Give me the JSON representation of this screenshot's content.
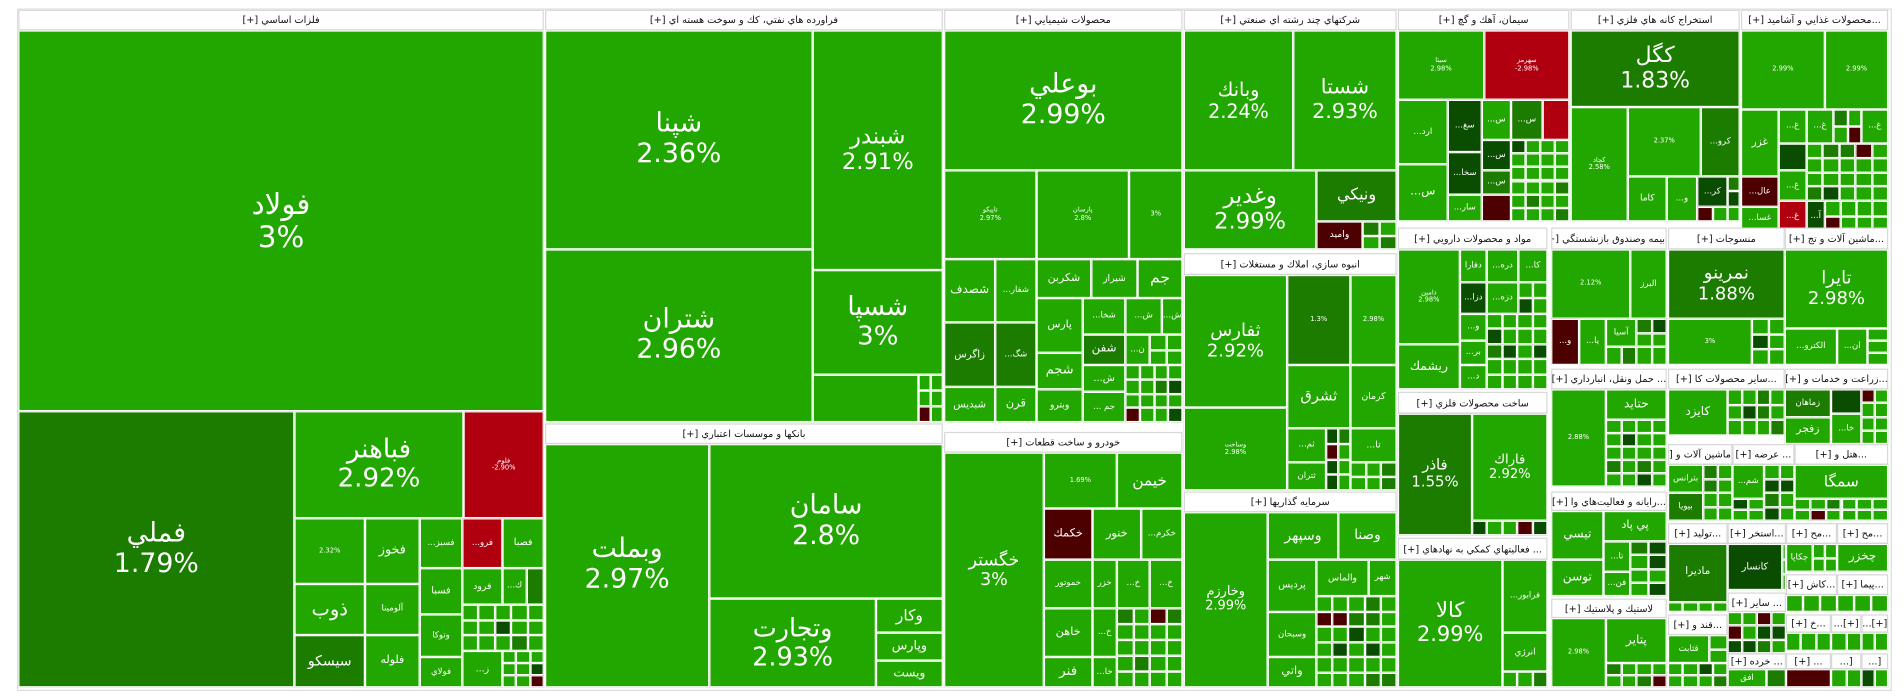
{
  "colors": {
    "g": "#22a700",
    "dg": "#1b7c00",
    "vdg": "#0b4d00",
    "r": "#b0000f",
    "dr": "#4c0000"
  },
  "sectors": [
    {
      "title": "فلزات اساسي [+]",
      "tiles": [
        {
          "s": "فولاد",
          "c": "3%",
          "k": "g"
        },
        {
          "s": "فملي",
          "c": "1.79%",
          "k": "dg"
        },
        {
          "s": "فباهنر",
          "c": "2.92%",
          "k": "g"
        },
        {
          "s": "فلوم",
          "c": "-2.90%",
          "k": "r"
        },
        {
          "s": "",
          "c": "2.32%",
          "k": "g"
        },
        {
          "s": "فخوز",
          "k": "g"
        },
        {
          "s": "...فسبز",
          "k": "g"
        },
        {
          "s": "...فرو",
          "k": "r"
        },
        {
          "s": "فصبا",
          "k": "g"
        },
        {
          "s": "ذوب",
          "k": "g"
        },
        {
          "s": "آلومينا",
          "k": "g"
        },
        {
          "s": "فسبا",
          "k": "g"
        },
        {
          "s": "فرود",
          "k": "g"
        },
        {
          "s": "...ك",
          "k": "g"
        },
        {
          "s": "",
          "k": "dg"
        },
        {
          "s": "سيسكو",
          "k": "dg"
        },
        {
          "s": "فلوله",
          "k": "g"
        },
        {
          "s": "وتوكا",
          "k": "g"
        },
        {
          "s": "فولاي",
          "k": "g"
        },
        {
          "s": "...ز",
          "k": "g"
        }
      ]
    },
    {
      "title": "فراورده هاي نفتي، كك و سوخت هسته اي [+]",
      "tiles": [
        {
          "s": "شپنا",
          "c": "2.36%",
          "k": "g"
        },
        {
          "s": "شتران",
          "c": "2.96%",
          "k": "g"
        },
        {
          "s": "شبندر",
          "c": "2.91%",
          "k": "g"
        },
        {
          "s": "شسپا",
          "c": "3%",
          "k": "g"
        },
        {
          "s": "",
          "k": "g"
        }
      ]
    },
    {
      "title": "بانكها و موسسات اعتباري [+]",
      "tiles": [
        {
          "s": "وبملت",
          "c": "2.97%",
          "k": "g"
        },
        {
          "s": "سامان",
          "c": "2.8%",
          "k": "g"
        },
        {
          "s": "وتجارت",
          "c": "2.93%",
          "k": "g"
        },
        {
          "s": "وكار",
          "k": "g"
        },
        {
          "s": "وپارس",
          "k": "g"
        },
        {
          "s": "ويست",
          "k": "g"
        }
      ]
    },
    {
      "title": "محصولات شيميايي [+]",
      "tiles": [
        {
          "s": "بوعلي",
          "c": "2.99%",
          "k": "g"
        },
        {
          "s": "تاپيكو",
          "c": "2.97%",
          "k": "g"
        },
        {
          "s": "پارسان",
          "c": "2.8%",
          "k": "g"
        },
        {
          "s": "",
          "c": "3%",
          "k": "g"
        },
        {
          "s": "شصدف",
          "k": "g"
        },
        {
          "s": "...شفار",
          "k": "g"
        },
        {
          "s": "شكربن",
          "k": "g"
        },
        {
          "s": "شيراز",
          "k": "g"
        },
        {
          "s": "جم",
          "k": "g"
        },
        {
          "s": "زاگرس",
          "k": "dg"
        },
        {
          "s": "...شگ",
          "k": "dg"
        },
        {
          "s": "شبديس",
          "k": "g"
        },
        {
          "s": "قرن",
          "k": "g"
        },
        {
          "s": "پارس",
          "k": "g"
        },
        {
          "s": "شجم",
          "k": "g"
        },
        {
          "s": "وبترو",
          "k": "g"
        },
        {
          "s": "...شخا",
          "k": "g"
        },
        {
          "s": "...ش",
          "k": "g"
        },
        {
          "s": "...ش",
          "k": "g"
        },
        {
          "s": "شفن",
          "k": "dg"
        },
        {
          "s": "...ن",
          "k": "g"
        },
        {
          "s": "...ش",
          "k": "g"
        },
        {
          "s": "... جم",
          "k": "g"
        }
      ]
    },
    {
      "title": "خودرو و ساخت قطعات [+]",
      "tiles": [
        {
          "s": "خگستر",
          "c": "3%",
          "k": "g"
        },
        {
          "s": "",
          "c": "1.69%",
          "k": "g"
        },
        {
          "s": "خيمن",
          "k": "g"
        },
        {
          "s": "خكمك",
          "k": "dr"
        },
        {
          "s": "خنور",
          "k": "g"
        },
        {
          "s": "...خكرم",
          "k": "g"
        },
        {
          "s": "خموتور",
          "k": "g"
        },
        {
          "s": "خزر",
          "k": "g"
        },
        {
          "s": "...خ",
          "k": "g"
        },
        {
          "s": "...خ",
          "k": "g"
        },
        {
          "s": "خاهن",
          "k": "g"
        },
        {
          "s": "فنر",
          "k": "g"
        },
        {
          "s": "...خ",
          "k": "g"
        },
        {
          "s": "...خا",
          "k": "g"
        }
      ]
    },
    {
      "title": "شركتهاي چند رشته اي صنعتي [+]",
      "tiles": [
        {
          "s": "وبانك",
          "c": "2.24%",
          "k": "g"
        },
        {
          "s": "شستا",
          "c": "2.93%",
          "k": "g"
        },
        {
          "s": "وغدير",
          "c": "2.99%",
          "k": "g"
        },
        {
          "s": "ونيكي",
          "k": "dg"
        },
        {
          "s": "واميد",
          "k": "dr"
        }
      ]
    },
    {
      "title": "انبوه سازي، املاك و مستغلات [+]",
      "tiles": [
        {
          "s": "ثفارس",
          "c": "2.92%",
          "k": "g"
        },
        {
          "s": "",
          "c": "1.3%",
          "k": "dg"
        },
        {
          "s": "",
          "c": "2.98%",
          "k": "g"
        },
        {
          "s": "ثشرق",
          "k": "g"
        },
        {
          "s": "كرمان",
          "k": "g"
        },
        {
          "s": "وساخت",
          "c": "2.98%",
          "k": "g"
        },
        {
          "s": "...ثم",
          "k": "g"
        },
        {
          "s": "...تا",
          "k": "g"
        },
        {
          "s": "ثتران",
          "k": "g"
        }
      ]
    },
    {
      "title": "سرمايه گذاريها [+]",
      "tiles": [
        {
          "s": "وخارزم",
          "c": "2.99%",
          "k": "g"
        },
        {
          "s": "وسپهر",
          "k": "g"
        },
        {
          "s": "وصنا",
          "k": "g"
        },
        {
          "s": "پرديس",
          "k": "g"
        },
        {
          "s": "والماس",
          "k": "g"
        },
        {
          "s": "شهر",
          "k": "g"
        },
        {
          "s": "وسبحان",
          "k": "g"
        },
        {
          "s": "واتي",
          "k": "g"
        }
      ]
    },
    {
      "title": "سيمان، آهك و گچ [+]",
      "tiles": [
        {
          "s": "سيتا",
          "c": "2.98%",
          "k": "g"
        },
        {
          "s": "سهرمز",
          "c": "-2.98%",
          "k": "r"
        },
        {
          "s": "...ارد",
          "k": "g"
        },
        {
          "s": "...س",
          "k": "g"
        },
        {
          "s": "...سغ",
          "k": "vdg"
        },
        {
          "s": "...سخا",
          "k": "vdg"
        },
        {
          "s": "...سار",
          "k": "g"
        },
        {
          "s": "...س",
          "k": "g"
        },
        {
          "s": "...س",
          "k": "dg"
        },
        {
          "s": "",
          "k": "r"
        },
        {
          "s": "...س",
          "k": "vdg"
        },
        {
          "s": "...س",
          "k": "dg"
        },
        {
          "s": "",
          "k": "dr"
        }
      ]
    },
    {
      "title": "مواد و محصولات دارويي [+]",
      "tiles": [
        {
          "s": "دامين",
          "c": "2.98%",
          "k": "g"
        },
        {
          "s": "ريشمك",
          "k": "g"
        },
        {
          "s": "دفارا",
          "k": "g"
        },
        {
          "s": "...دره",
          "k": "g"
        },
        {
          "s": "...كا",
          "k": "g"
        },
        {
          "s": "...دزا",
          "k": "vdg"
        },
        {
          "s": "...دزه",
          "k": "g"
        },
        {
          "s": "...و",
          "k": "g"
        },
        {
          "s": "...بر",
          "k": "g"
        },
        {
          "s": "...د",
          "k": "g"
        }
      ]
    },
    {
      "title": "ساخت محصولات فلزي [+]",
      "tiles": [
        {
          "s": "فاذر",
          "c": "1.55%",
          "k": "dg"
        },
        {
          "s": "فاراك",
          "c": "2.92%",
          "k": "g"
        }
      ]
    },
    {
      "title": "... فعاليتهاي كمكي به نهادهاي [+]",
      "tiles": [
        {
          "s": "كالا",
          "c": "2.99%",
          "k": "g"
        },
        {
          "s": "...فرابور",
          "k": "g"
        },
        {
          "s": "انرژي",
          "k": "g"
        }
      ]
    },
    {
      "title": "استخراج كانه هاي فلزي [+]",
      "tiles": [
        {
          "s": "كگل",
          "c": "1.83%",
          "k": "dg"
        },
        {
          "s": "كچاد",
          "c": "2.58%",
          "k": "g"
        },
        {
          "s": "",
          "c": "2.37%",
          "k": "g"
        },
        {
          "s": "...كرو",
          "k": "dg"
        },
        {
          "s": "كاما",
          "k": "g"
        },
        {
          "s": "...و",
          "k": "g"
        },
        {
          "s": "...كر",
          "k": "vdg"
        }
      ]
    },
    {
      "title": "...محصولات غذايي و آشاميد [+]",
      "tiles": [
        {
          "s": "",
          "c": "2.99%",
          "k": "g"
        },
        {
          "s": "",
          "c": "2.99%",
          "k": "g"
        },
        {
          "s": "غزر",
          "k": "g"
        },
        {
          "s": "...غ",
          "k": "g"
        },
        {
          "s": "...غ",
          "k": "g"
        },
        {
          "s": "...غ",
          "k": "g"
        },
        {
          "s": "",
          "k": "vdg"
        },
        {
          "s": "...عال",
          "k": "dr"
        },
        {
          "s": "...غسا",
          "k": "g"
        },
        {
          "s": "...غ",
          "k": "g"
        },
        {
          "s": "...غ",
          "k": "r"
        },
        {
          "s": "...آ",
          "k": "vdg"
        }
      ]
    },
    {
      "title": "...بيمه وصندوق بازنشستگي [+]",
      "tiles": [
        {
          "s": "",
          "c": "2.12%",
          "k": "g"
        },
        {
          "s": "البرز",
          "k": "g"
        },
        {
          "s": "...و",
          "k": "dr"
        },
        {
          "s": "...يا",
          "k": "g"
        },
        {
          "s": "آسيا",
          "k": "g"
        }
      ]
    },
    {
      "title": "منسوجات [+]",
      "tiles": [
        {
          "s": "نمرينو",
          "c": "1.88%",
          "k": "dg"
        },
        {
          "s": "",
          "c": "3%",
          "k": "g"
        }
      ]
    },
    {
      "title": "...ماشين آلات و تج [+]",
      "tiles": [
        {
          "s": "تايرا",
          "c": "2.98%",
          "k": "g"
        },
        {
          "s": "...الكترو",
          "k": "g"
        },
        {
          "s": "...ان",
          "k": "g"
        }
      ]
    },
    {
      "title": "... حمل ونقل، انبارداري [+]",
      "tiles": [
        {
          "s": "",
          "c": "2.88%",
          "k": "g"
        },
        {
          "s": "حتايد",
          "k": "g"
        }
      ]
    },
    {
      "title": "...رايانه و فعاليت‌هاي وا [+]",
      "tiles": [
        {
          "s": "تيسي",
          "k": "g"
        },
        {
          "s": "پي پاد",
          "k": "g"
        },
        {
          "s": "...تا",
          "k": "g"
        },
        {
          "s": "توسن",
          "k": "g"
        },
        {
          "s": "...فن",
          "k": "g"
        }
      ]
    },
    {
      "title": "لاستيك و پلاستيك [+]",
      "tiles": [
        {
          "s": "",
          "c": "2.98%",
          "k": "g"
        },
        {
          "s": "پتاير",
          "k": "g"
        }
      ]
    },
    {
      "title": "...ساير محصولات كا [+]",
      "tiles": [
        {
          "s": "كايزد",
          "k": "g"
        }
      ]
    },
    {
      "title": "...زراعت و خدمات و [+]",
      "tiles": [
        {
          "s": "زماهان",
          "k": "dg"
        },
        {
          "s": "زفجر",
          "k": "g"
        },
        {
          "s": "",
          "k": "vdg"
        },
        {
          "s": "...خا",
          "k": "g"
        }
      ]
    },
    {
      "title": "... ماشين آلات و [+]",
      "tiles": [
        {
          "s": "بترانس",
          "k": "g"
        },
        {
          "s": "بيويا",
          "k": "dg"
        }
      ]
    },
    {
      "title": "... عرضه [+]",
      "tiles": [
        {
          "s": "...شم",
          "k": "g"
        }
      ]
    },
    {
      "title": "...هتل و [+]",
      "tiles": [
        {
          "s": "سمگا",
          "k": "g"
        }
      ]
    },
    {
      "title": "...توليد [+]",
      "tiles": [
        {
          "s": "ماديرا",
          "k": "dg"
        }
      ]
    },
    {
      "title": "...استخر [+]",
      "tiles": [
        {
          "s": "كانسار",
          "k": "vdg"
        }
      ]
    },
    {
      "title": "...مح [+]",
      "tiles": [
        {
          "s": "چكاپا",
          "k": "g"
        }
      ]
    },
    {
      "title": "...مح [+]",
      "tiles": [
        {
          "s": "چخزر",
          "k": "g"
        }
      ]
    },
    {
      "title": "...كاش [+]",
      "tiles": []
    },
    {
      "title": "...پيما [+]",
      "tiles": []
    },
    {
      "title": "... ساير [+]",
      "tiles": []
    },
    {
      "title": "...قند و [+]",
      "tiles": [
        {
          "s": "قثابت",
          "k": "g"
        }
      ]
    },
    {
      "title": "... خرده [+]",
      "tiles": [
        {
          "s": "افق",
          "k": "g"
        }
      ]
    },
    {
      "title": "...خ [+]",
      "tiles": []
    },
    {
      "title": "[+]...",
      "tiles": []
    },
    {
      "title": "[+]...",
      "tiles": []
    },
    {
      "title": "... [+]",
      "tiles": [
        {
          "s": "",
          "k": "dr"
        }
      ]
    },
    {
      "title": "[...",
      "tiles": []
    },
    {
      "title": "[...",
      "tiles": []
    }
  ]
}
